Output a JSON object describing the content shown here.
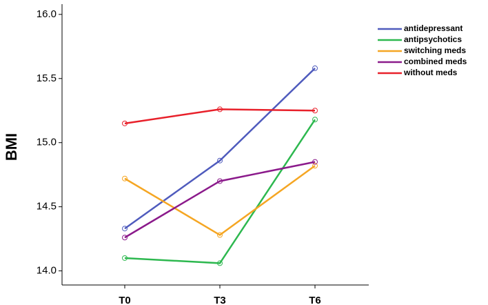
{
  "chart_data": {
    "type": "line",
    "y_label": "BMI",
    "categories": [
      "T0",
      "T3",
      "T6"
    ],
    "ylim": [
      13.89,
      16.08
    ],
    "yticks": [
      {
        "value": 14,
        "label": "14.0"
      },
      {
        "value": 14.5,
        "label": "14.5"
      },
      {
        "value": 15,
        "label": "15.0"
      },
      {
        "value": 15.5,
        "label": "15.5"
      },
      {
        "value": 16,
        "label": "16.0"
      }
    ],
    "series": [
      {
        "name": "antidepressant",
        "color": "#4f5bbd",
        "values": [
          14.33,
          14.86,
          15.58
        ]
      },
      {
        "name": "antipsychotics",
        "color": "#2db84f",
        "values": [
          14.1,
          14.06,
          15.18
        ]
      },
      {
        "name": "switching meds",
        "color": "#f5a623",
        "values": [
          14.72,
          14.28,
          14.82
        ]
      },
      {
        "name": "combined meds",
        "color": "#8b1a8b",
        "values": [
          14.26,
          14.7,
          14.85
        ]
      },
      {
        "name": "without meds",
        "color": "#e8202a",
        "values": [
          15.15,
          15.26,
          15.25
        ]
      }
    ]
  }
}
